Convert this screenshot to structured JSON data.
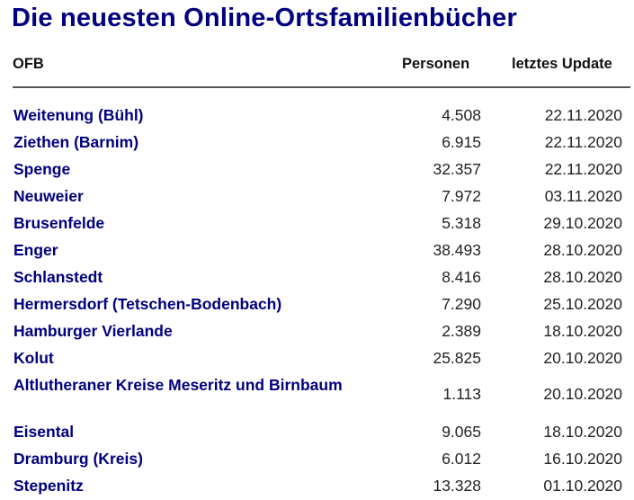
{
  "title": "Die neuesten Online-Ortsfamilienbücher",
  "columns": {
    "ofb": "OFB",
    "personen": "Personen",
    "update": "letztes Update"
  },
  "rows": [
    {
      "name": "Weitenung (Bühl)",
      "personen": "4.508",
      "update": "22.11.2020"
    },
    {
      "name": "Ziethen (Barnim)",
      "personen": "6.915",
      "update": "22.11.2020"
    },
    {
      "name": "Spenge",
      "personen": "32.357",
      "update": "22.11.2020"
    },
    {
      "name": "Neuweier",
      "personen": "7.972",
      "update": "03.11.2020"
    },
    {
      "name": "Brusenfelde",
      "personen": "5.318",
      "update": "29.10.2020"
    },
    {
      "name": "Enger",
      "personen": "38.493",
      "update": "28.10.2020"
    },
    {
      "name": "Schlanstedt",
      "personen": "8.416",
      "update": "28.10.2020"
    },
    {
      "name": "Hermersdorf (Tetschen-Bodenbach)",
      "personen": "7.290",
      "update": "25.10.2020"
    },
    {
      "name": "Hamburger Vierlande",
      "personen": "2.389",
      "update": "18.10.2020"
    },
    {
      "name": "Kolut",
      "personen": "25.825",
      "update": "20.10.2020"
    },
    {
      "name": "Altlutheraner Kreise Meseritz und Birnbaum",
      "personen": "1.113",
      "update": "20.10.2020"
    },
    {
      "name": "Eisental",
      "personen": "9.065",
      "update": "18.10.2020"
    },
    {
      "name": "Dramburg (Kreis)",
      "personen": "6.012",
      "update": "16.10.2020"
    },
    {
      "name": "Stepenitz",
      "personen": "13.328",
      "update": "01.10.2020"
    }
  ]
}
